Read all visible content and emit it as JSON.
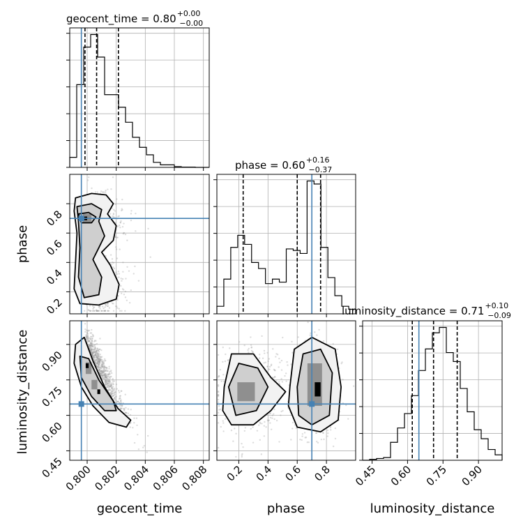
{
  "chart_data": [
    {
      "type": "corner",
      "parameters": [
        "geocent_time",
        "phase",
        "luminosity_distance"
      ],
      "axis_labels": {
        "x": [
          "geocent_time",
          "phase",
          "luminosity_distance"
        ],
        "y_row2": "phase",
        "y_row3": "luminosity_distance"
      },
      "titles": [
        {
          "name": "geocent_time",
          "median": "0.80",
          "plus": "+0.00",
          "minus": "−0.00"
        },
        {
          "name": "phase",
          "median": "0.60",
          "plus": "+0.16",
          "minus": "−0.37"
        },
        {
          "name": "luminosity_distance",
          "median": "0.71",
          "plus": "+0.10",
          "minus": "−0.09"
        }
      ],
      "ranges": {
        "geocent_time": [
          0.7988,
          0.8084
        ],
        "phase": [
          0.05,
          1.0
        ],
        "luminosity_distance": [
          0.41,
          1.0
        ]
      },
      "ticks": {
        "geocent_time": {
          "values": [
            0.8,
            0.802,
            0.804,
            0.806,
            0.808
          ],
          "labels": [
            "0.800",
            "0.802",
            "0.804",
            "0.806",
            "0.808"
          ]
        },
        "phase": {
          "values": [
            0.2,
            0.4,
            0.6,
            0.8
          ],
          "labels": [
            "0.2",
            "0.4",
            "0.6",
            "0.8"
          ]
        },
        "luminosity_distance": {
          "values": [
            0.45,
            0.6,
            0.75,
            0.9
          ],
          "labels": [
            "0.45",
            "0.60",
            "0.75",
            "0.90"
          ]
        }
      },
      "truths": {
        "geocent_time": 0.7996,
        "phase": 0.7,
        "luminosity_distance": 0.648
      },
      "quantiles": {
        "geocent_time": [
          0.79985,
          0.80065,
          0.80215
        ],
        "phase": [
          0.23,
          0.6,
          0.76
        ],
        "luminosity_distance": [
          0.62,
          0.71,
          0.81
        ]
      },
      "histograms": {
        "geocent_time": [
          4,
          33,
          48,
          53,
          44,
          29,
          29,
          24,
          18,
          12,
          8,
          5,
          2,
          1,
          1,
          0.3,
          0.1,
          0.1,
          0,
          0
        ],
        "phase": [
          5,
          23,
          44,
          52,
          46,
          34,
          30,
          20,
          23,
          21,
          43,
          42,
          40,
          88,
          86,
          44,
          24,
          12,
          5,
          3
        ],
        "luminosity_distance": [
          0,
          0.5,
          1,
          1.5,
          10,
          18,
          26,
          36,
          50,
          62,
          71,
          74,
          60,
          55,
          40,
          27,
          17,
          12,
          6,
          3
        ]
      },
      "grid": true
    }
  ]
}
